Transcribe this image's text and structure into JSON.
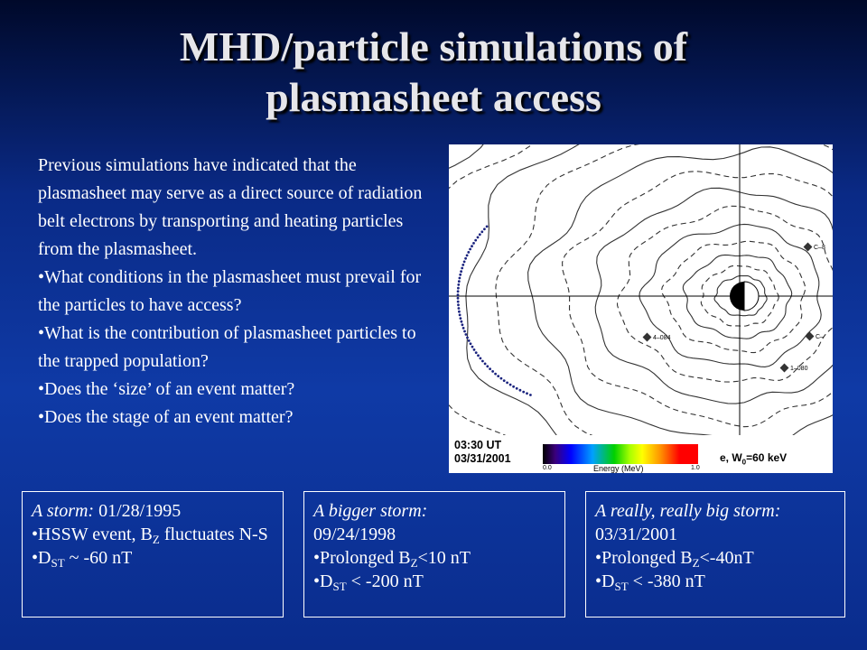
{
  "slide": {
    "title_line1": "MHD/particle simulations of",
    "title_line2": "plasmasheet access",
    "intro": "Previous simulations have indicated that the plasmasheet may serve as a direct source of radiation belt electrons by transporting and heating particles from the plasmasheet.",
    "bullets": [
      "What conditions in the plasmasheet must prevail for the particles to have access?",
      "What is the contribution of plasmasheet particles to the trapped population?",
      "Does the ‘size’ of an event matter?",
      "Does the stage of an event matter?"
    ]
  },
  "figure": {
    "time": "03:30 UT",
    "date": "03/31/2001",
    "colorbar_min": "0.0",
    "colorbar_max": "1.0",
    "colorbar_label": "Energy (MeV)",
    "param": "e, W",
    "param_sub": "0",
    "param_value": "=60 keV",
    "markers": [
      {
        "label": "4–084"
      },
      {
        "label": "1–080"
      },
      {
        "label": "C–8"
      },
      {
        "label": "C–"
      }
    ]
  },
  "boxes": [
    {
      "head": "A storm:",
      "head_rest": " 01/28/1995",
      "lines": [
        {
          "pre": "HSSW event, B",
          "sub": "Z",
          "post": " fluctuates N-S"
        },
        {
          "pre": "D",
          "sub": "ST",
          "post": " ~ -60 nT"
        }
      ]
    },
    {
      "head": "A bigger storm:",
      "head_rest": "",
      "date": "09/24/1998",
      "lines": [
        {
          "pre": "Prolonged B",
          "sub": "Z",
          "post": "<10 nT"
        },
        {
          "pre": "D",
          "sub": "ST",
          "post": " < -200 nT"
        }
      ]
    },
    {
      "head": "A really, really big storm:",
      "head_rest": "",
      "date": "03/31/2001",
      "lines": [
        {
          "pre": "Prolonged B",
          "sub": "Z",
          "post": "<-40nT"
        },
        {
          "pre": "D",
          "sub": "ST",
          "post": " < -380 nT"
        }
      ]
    }
  ]
}
